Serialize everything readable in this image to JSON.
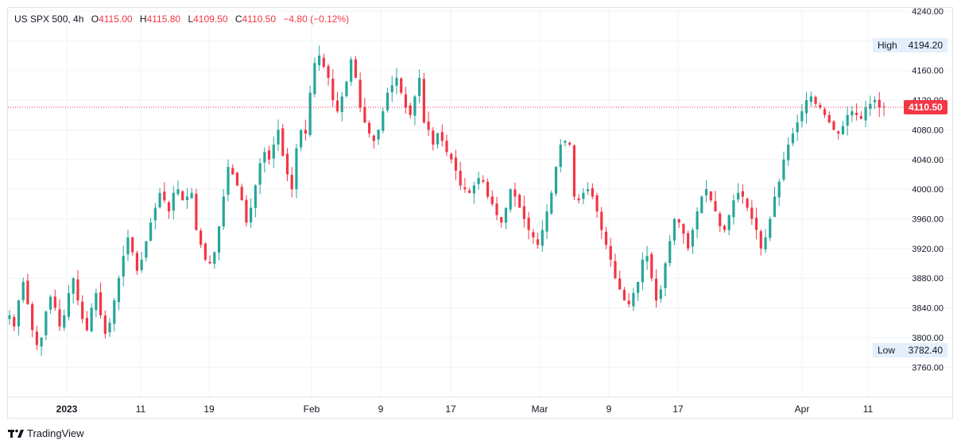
{
  "legend": {
    "symbol": "US SPX 500, 4h",
    "open_label": "O",
    "open": "4115.00",
    "high_label": "H",
    "high": "4115.80",
    "low_label": "L",
    "low": "4109.50",
    "close_label": "C",
    "close": "4110.50",
    "change": "−4.80 (−0.12%)"
  },
  "markers": {
    "high_label": "High",
    "high_value": "4194.20",
    "low_label": "Low",
    "low_value": "3782.40",
    "last_price": "4110.50"
  },
  "branding": {
    "name": "TradingView"
  },
  "colors": {
    "up": "#26a69a",
    "down": "#f23645",
    "grid": "#f0f3fa",
    "axis_text": "#131722",
    "tag_bg": "#e3effd"
  },
  "chart_data": {
    "type": "candlestick",
    "interval": "4h",
    "ylim": [
      3740,
      4240
    ],
    "y_ticks": [
      "4240.00",
      "4200.00",
      "4160.00",
      "4120.00",
      "4080.00",
      "4040.00",
      "4000.00",
      "3960.00",
      "3920.00",
      "3880.00",
      "3840.00",
      "3800.00",
      "3760.00"
    ],
    "x_ticks": [
      {
        "label": "2023",
        "bold": true
      },
      {
        "label": "11"
      },
      {
        "label": "19"
      },
      {
        "label": "Feb"
      },
      {
        "label": "9"
      },
      {
        "label": "17"
      },
      {
        "label": "Mar"
      },
      {
        "label": "9"
      },
      {
        "label": "17"
      },
      {
        "label": "Apr"
      },
      {
        "label": "11"
      }
    ],
    "current_price": 4110.5,
    "period_high": 4194.2,
    "period_low": 3782.4,
    "closes": [
      3830,
      3815,
      3850,
      3875,
      3845,
      3810,
      3790,
      3800,
      3835,
      3855,
      3840,
      3815,
      3830,
      3860,
      3880,
      3850,
      3825,
      3810,
      3840,
      3860,
      3830,
      3805,
      3820,
      3850,
      3880,
      3910,
      3935,
      3915,
      3890,
      3905,
      3930,
      3955,
      3975,
      3995,
      3985,
      3970,
      3995,
      4000,
      3985,
      3990,
      3995,
      3945,
      3925,
      3905,
      3900,
      3915,
      3950,
      3990,
      4030,
      4020,
      4005,
      3985,
      3955,
      3975,
      4005,
      4035,
      4050,
      4040,
      4060,
      4080,
      4045,
      4020,
      4000,
      4055,
      4080,
      4075,
      4130,
      4170,
      4180,
      4165,
      4150,
      4120,
      4105,
      4125,
      4145,
      4175,
      4150,
      4110,
      4090,
      4075,
      4065,
      4080,
      4105,
      4130,
      4140,
      4150,
      4130,
      4110,
      4100,
      4125,
      4150,
      4090,
      4080,
      4060,
      4075,
      4065,
      4050,
      4040,
      4025,
      4005,
      4000,
      3995,
      4005,
      4015,
      4010,
      3990,
      3980,
      3965,
      3955,
      3975,
      4000,
      3990,
      3975,
      3960,
      3945,
      3935,
      3925,
      3945,
      3970,
      3995,
      4030,
      4060,
      4065,
      4060,
      3990,
      3985,
      3995,
      4000,
      3990,
      3970,
      3945,
      3925,
      3905,
      3880,
      3865,
      3850,
      3845,
      3860,
      3875,
      3905,
      3910,
      3880,
      3850,
      3865,
      3900,
      3930,
      3960,
      3955,
      3940,
      3920,
      3945,
      3970,
      3990,
      4000,
      3985,
      3970,
      3950,
      3945,
      3965,
      3985,
      3995,
      3990,
      3975,
      3960,
      3945,
      3920,
      3935,
      3960,
      3990,
      4010,
      4040,
      4060,
      4075,
      4090,
      4105,
      4120,
      4125,
      4115,
      4110,
      4100,
      4090,
      4080,
      4075,
      4085,
      4100,
      4105,
      4100,
      4095,
      4110,
      4115,
      4120,
      4110,
      4110.5
    ]
  }
}
